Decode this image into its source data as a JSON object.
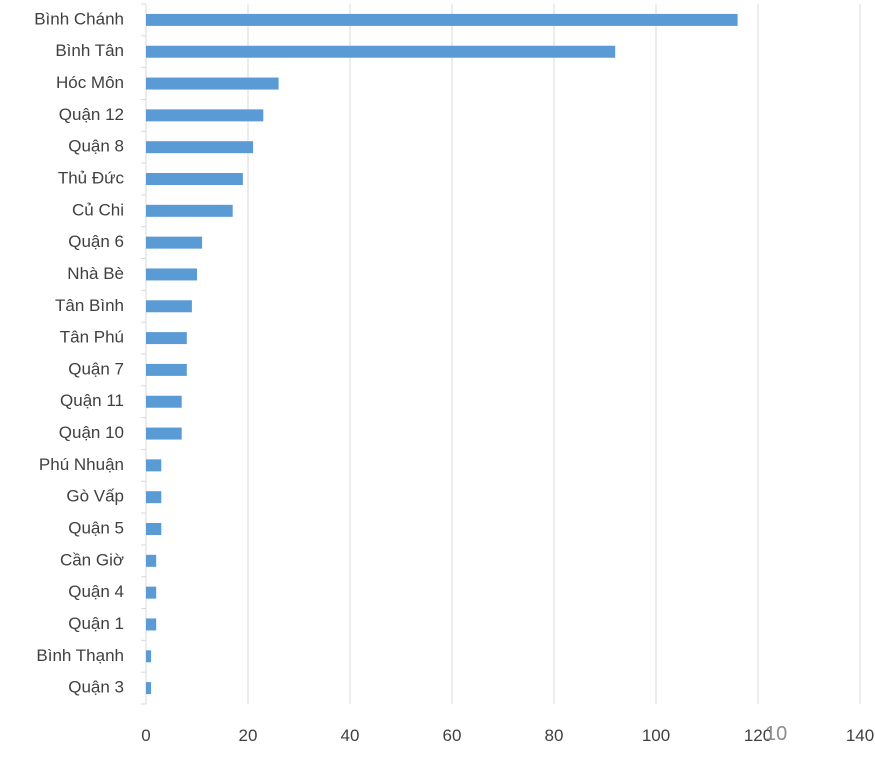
{
  "chart_data": {
    "type": "bar",
    "orientation": "horizontal",
    "categories": [
      "Bình Chánh",
      "Bình Tân",
      "Hóc Môn",
      "Quận 12",
      "Quận 8",
      "Thủ Đức",
      "Củ Chi",
      "Quận 6",
      "Nhà Bè",
      "Tân Bình",
      "Tân Phú",
      "Quận 7",
      "Quận 11",
      "Quận 10",
      "Phú Nhuận",
      "Gò Vấp",
      "Quận 5",
      "Cần Giờ",
      "Quận 4",
      "Quận 1",
      "Bình Thạnh",
      "Quận 3"
    ],
    "values": [
      116,
      92,
      26,
      23,
      21,
      19,
      17,
      11,
      10,
      9,
      8,
      8,
      7,
      7,
      3,
      3,
      3,
      2,
      2,
      2,
      1,
      1
    ],
    "xlim": [
      0,
      140
    ],
    "xticks": [
      0,
      20,
      40,
      60,
      80,
      100,
      120,
      140
    ],
    "grid": true,
    "bar_color": "#5b9bd5",
    "grid_color": "#d9d9d9"
  },
  "page_number": "10"
}
